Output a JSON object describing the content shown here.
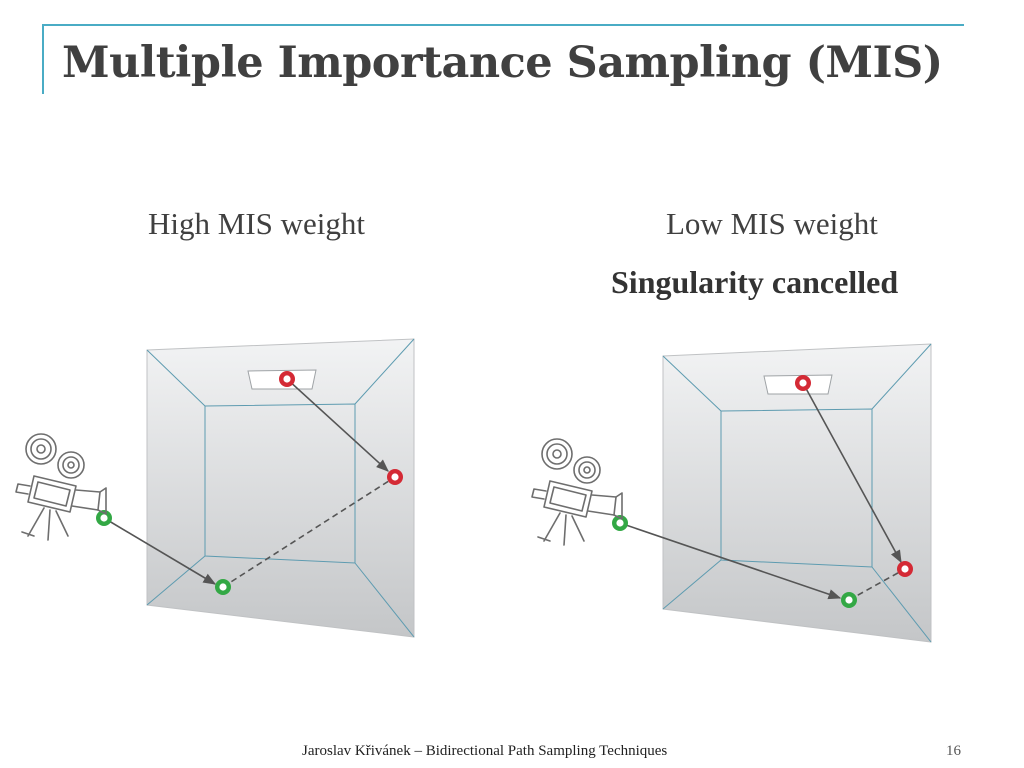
{
  "slide": {
    "title": "Multiple Importance Sampling (MIS)",
    "footer": "Jaroslav Křivánek – Bidirectional Path Sampling Techniques",
    "page_number": "16"
  },
  "left_panel": {
    "label": "High MIS weight"
  },
  "right_panel": {
    "label": "Low MIS weight",
    "sublabel": "Singularity cancelled"
  },
  "colors": {
    "accent": "#4aacc5",
    "room_fill_top": "#f2f3f4",
    "room_fill_bottom": "#c4c6c8",
    "room_edge": "#5d9bb0",
    "light_vertex": "#d42a35",
    "camera_vertex": "#33a845",
    "path": "#555555"
  },
  "icons": {
    "camera": "movie-camera-icon"
  }
}
